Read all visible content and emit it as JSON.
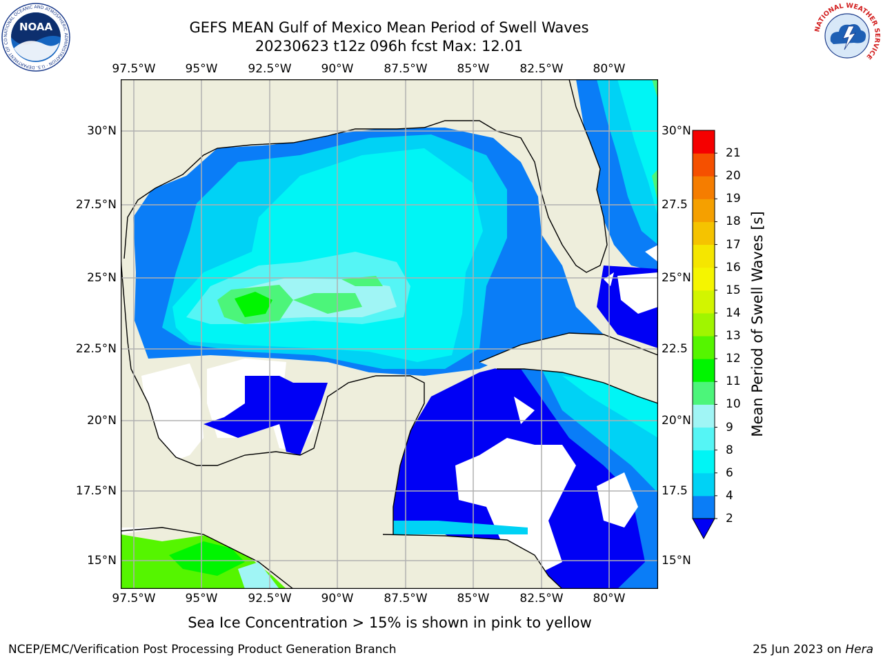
{
  "title": {
    "line1": "GEFS MEAN Gulf of Mexico Mean Period of Swell Waves",
    "line2": "20230623 t12z 096h fcst   Max: 12.01"
  },
  "axes": {
    "lon_labels": [
      "97.5°W",
      "95°W",
      "92.5°W",
      "90°W",
      "87.5°W",
      "85°W",
      "82.5°W",
      "80°W"
    ],
    "lat_labels_left": [
      "30°N",
      "27.5°N",
      "25°N",
      "22.5°N",
      "20°N",
      "17.5°N",
      "15°N"
    ],
    "lat_labels_right": [
      "30°N",
      "27.5",
      "25°N",
      "22.5",
      "20°N",
      "17.5",
      "15°N"
    ]
  },
  "colorbar": {
    "label": "Mean Period of Swell Waves [s]",
    "ticks": [
      "2",
      "4",
      "6",
      "8",
      "9",
      "10",
      "11",
      "12",
      "13",
      "14",
      "15",
      "16",
      "17",
      "18",
      "19",
      "20",
      "21"
    ],
    "colors": [
      "#0a7df7",
      "#00d2f5",
      "#00f5f5",
      "#55f5f5",
      "#a0f5f5",
      "#4cf57a",
      "#00f500",
      "#55f500",
      "#a0f500",
      "#d2f500",
      "#f5f500",
      "#f5e600",
      "#f5c300",
      "#f5a000",
      "#f57d00",
      "#f55000",
      "#f50000"
    ],
    "under_color": "#0000f5"
  },
  "map_colors": {
    "land": "#eeeedc",
    "no_data": "#ffffff",
    "p2_4": "#0a7df7",
    "p4_6": "#00d2f5",
    "p6_8": "#00f5f5",
    "p8_9": "#55f5f5",
    "p9_10": "#a0f5f5",
    "p10_11": "#4cf57a",
    "p11_12": "#00f500",
    "p12_13": "#55f500",
    "under_2": "#0000f5"
  },
  "logos": {
    "noaa_text": "NOAA",
    "noaa_ring": "NATIONAL OCEANIC AND ATMOSPHERIC ADMINISTRATION · U.S. DEPARTMENT OF COMMERCE",
    "nws_ring": "NATIONAL WEATHER SERVICE"
  },
  "footnote": "Sea Ice Concentration > 15% is shown in pink to yellow",
  "credit": "NCEP/EMC/Verification Post Processing Product Generation Branch",
  "run_date": {
    "date": "25 Jun 2023 on ",
    "machine": "Hera"
  }
}
